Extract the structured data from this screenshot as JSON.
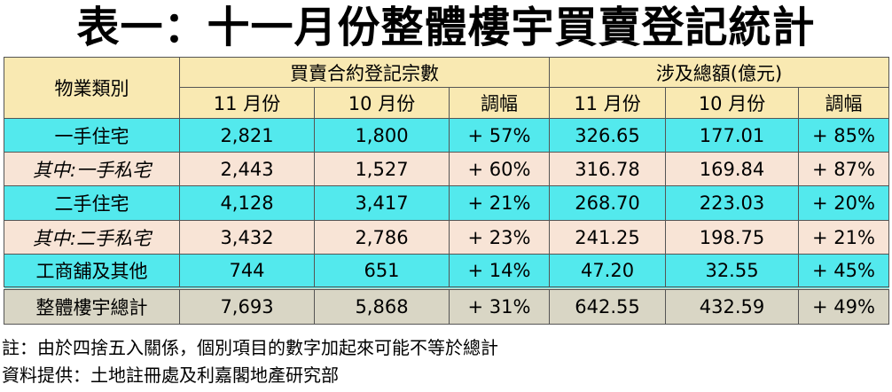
{
  "title": "表一：十一月份整體樓宇買賣登記統計",
  "table": {
    "category_header": "物業類別",
    "group_headers": [
      "買賣合約登記宗數",
      "涉及總額(億元)"
    ],
    "sub_headers": [
      "11 月份",
      "10 月份",
      "調幅",
      "11 月份",
      "10 月份",
      "調幅"
    ],
    "rows": [
      {
        "label": "一手住宅",
        "values": [
          "2,821",
          "1,800",
          "+ 57%",
          "326.65",
          "177.01",
          "+ 85%"
        ]
      },
      {
        "label": "其中:一手私宅",
        "values": [
          "2,443",
          "1,527",
          "+ 60%",
          "316.78",
          "169.84",
          "+ 87%"
        ]
      },
      {
        "label": "二手住宅",
        "values": [
          "4,128",
          "3,417",
          "+ 21%",
          "268.70",
          "223.03",
          "+ 20%"
        ]
      },
      {
        "label": "其中:二手私宅",
        "values": [
          "3,432",
          "2,786",
          "+ 23%",
          "241.25",
          "198.75",
          "+ 21%"
        ]
      },
      {
        "label": "工商舖及其他",
        "values": [
          "744",
          "651",
          "+ 14%",
          "47.20",
          "32.55",
          "+ 45%"
        ]
      },
      {
        "label": "整體樓宇總計",
        "values": [
          "7,693",
          "5,868",
          "+ 31%",
          "642.55",
          "432.59",
          "+ 49%"
        ]
      }
    ]
  },
  "notes": [
    "註：由於四捨五入關係，個別項目的數字加起來可能不等於總計",
    "資料提供：土地註冊處及利嘉閣地產研究部"
  ]
}
